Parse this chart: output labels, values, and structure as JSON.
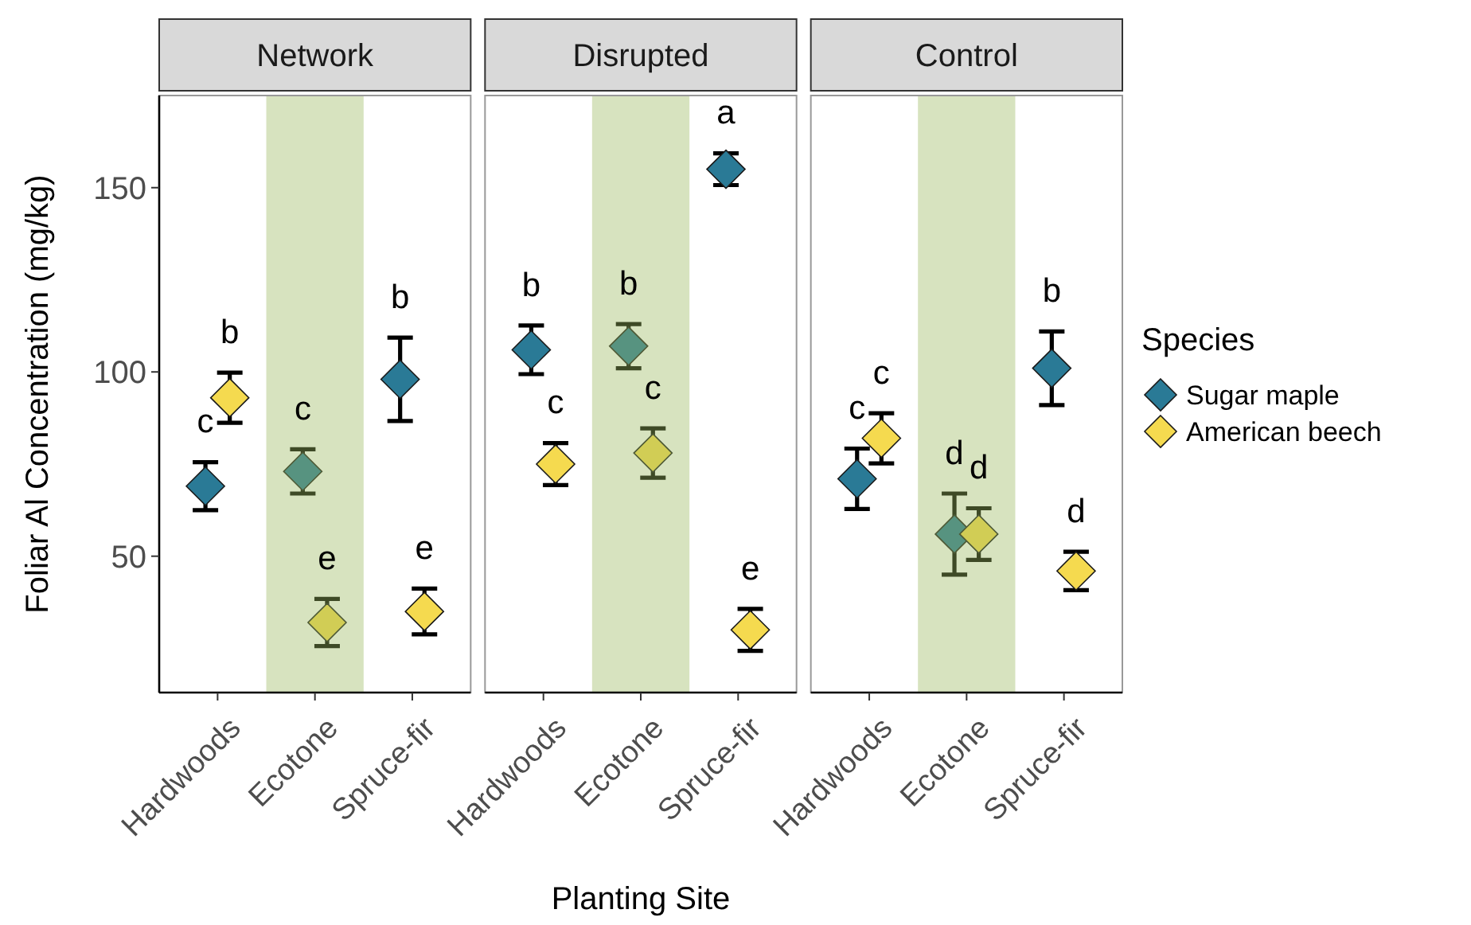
{
  "chart_data": [
    {
      "type": "scatter",
      "title": "Network",
      "ylabel": "Foliar Al Concentration (mg/kg)",
      "categories": [
        "Hardwoods",
        "Ecotone",
        "Spruce-fir"
      ],
      "ylim": [
        13,
        175
      ],
      "yticks": [
        50,
        100,
        150
      ],
      "marker": "diamond",
      "grid": false,
      "series": [
        {
          "color": "#2a7a96",
          "values": [
            69,
            73,
            98
          ],
          "errors": [
            6.5,
            6,
            11.3
          ]
        },
        {
          "color": "#f5da4f",
          "values": [
            93,
            32,
            35
          ],
          "errors": [
            6.8,
            6.4,
            6.2
          ]
        }
      ],
      "bands": [
        {
          "axis": "x",
          "from": "Ecotone",
          "to": "Ecotone",
          "color": "#9cb860"
        }
      ],
      "annotations": [
        "c",
        "c",
        "b",
        "b",
        "e",
        "e"
      ]
    },
    {
      "type": "scatter",
      "title": "Disrupted",
      "xlabel": "Planting Site",
      "categories": [
        "Hardwoods",
        "Ecotone",
        "Spruce-fir"
      ],
      "ylim": [
        13,
        175
      ],
      "yticks": [
        50,
        100,
        150
      ],
      "tick_labels": "x",
      "marker": "diamond",
      "grid": false,
      "series": [
        {
          "color": "#2a7a96",
          "values": [
            106,
            107,
            155
          ],
          "errors": [
            6.6,
            6,
            4.3
          ]
        },
        {
          "color": "#f5da4f",
          "values": [
            75,
            78,
            30
          ],
          "errors": [
            5.7,
            6.7,
            5.7
          ]
        }
      ],
      "bands": [
        {
          "axis": "x",
          "from": "Ecotone",
          "to": "Ecotone",
          "color": "#9cb860"
        }
      ],
      "annotations": [
        "b",
        "b",
        "a",
        "c",
        "c",
        "e"
      ]
    },
    {
      "type": "scatter",
      "title": "Control",
      "categories": [
        "Hardwoods",
        "Ecotone",
        "Spruce-fir"
      ],
      "ylim": [
        13,
        175
      ],
      "yticks": [
        50,
        100,
        150
      ],
      "tick_labels": "x",
      "marker": "diamond",
      "grid": false,
      "legend": "right",
      "legend_title": "Species",
      "series": [
        {
          "name": "Sugar maple",
          "color": "#2a7a96",
          "values": [
            71,
            56,
            101
          ],
          "errors": [
            8.2,
            11,
            10
          ]
        },
        {
          "name": "American beech",
          "color": "#f5da4f",
          "values": [
            82,
            56,
            46
          ],
          "errors": [
            6.8,
            7,
            5.2
          ]
        }
      ],
      "bands": [
        {
          "axis": "x",
          "from": "Ecotone",
          "to": "Ecotone",
          "color": "#9cb860"
        }
      ],
      "annotations": [
        "c",
        "d",
        "b",
        "c",
        "d",
        "d"
      ]
    }
  ]
}
